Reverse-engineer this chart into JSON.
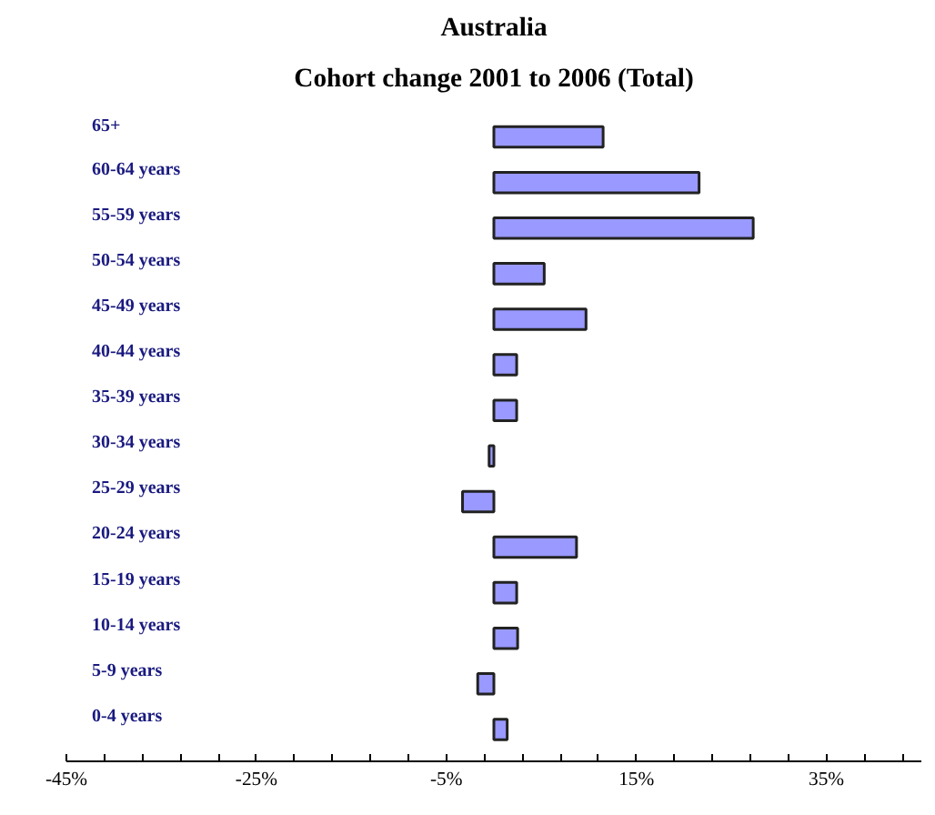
{
  "chart_data": {
    "type": "bar",
    "orientation": "horizontal",
    "title": "Australia",
    "subtitle": "Cohort change 2001 to 2006 (Total)",
    "categories": [
      "65+",
      "60-64 years",
      "55-59 years",
      "50-54 years",
      "45-49 years",
      "40-44 years",
      "35-39 years",
      "30-34 years",
      "25-29 years",
      "20-24 years",
      "15-19 years",
      "10-14 years",
      "5-9 years",
      "0-4 years"
    ],
    "values": [
      11.5,
      21.6,
      27.3,
      5.3,
      9.7,
      2.4,
      2.4,
      -0.5,
      -3.3,
      8.7,
      2.4,
      2.5,
      -1.7,
      1.4
    ],
    "color": "#9999ff",
    "xlim": [
      -45,
      45
    ],
    "xticks": [
      {
        "value": -45,
        "label": "-45%"
      },
      {
        "value": -25,
        "label": "-25%"
      },
      {
        "value": -5,
        "label": "-5%"
      },
      {
        "value": 15,
        "label": "15%"
      },
      {
        "value": 35,
        "label": "35%"
      }
    ],
    "grid": false
  }
}
